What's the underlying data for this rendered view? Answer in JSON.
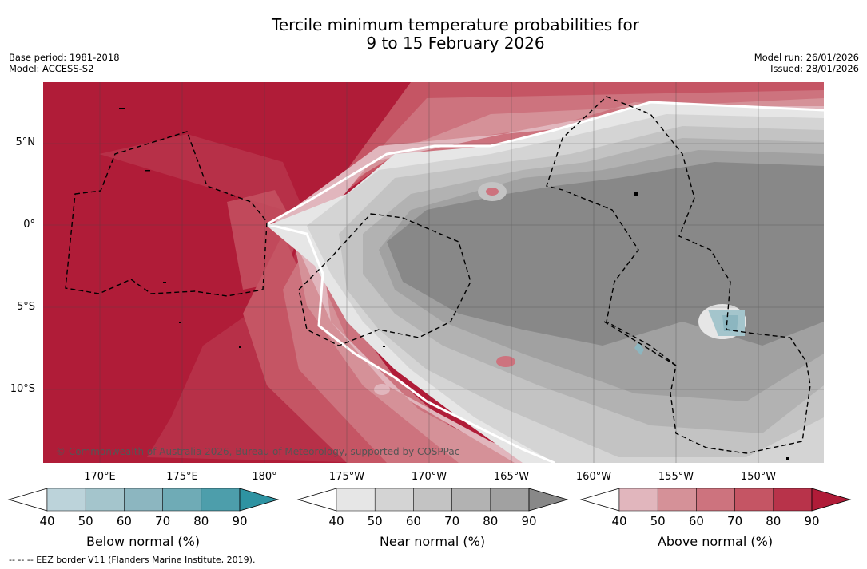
{
  "title": {
    "line1": "Tercile minimum temperature probabilities for",
    "line2": "9 to 15 February 2026"
  },
  "meta_left": {
    "base_period": "Base period: 1981-2018",
    "model": "Model: ACCESS-S2"
  },
  "meta_right": {
    "model_run": "Model run: 26/01/2026",
    "issued": "Issued: 28/01/2026"
  },
  "map": {
    "copyright": "© Commonwealth of Australia 2026, Bureau of Meteorology, supported by COSPPac",
    "lat_labels": [
      "5°N",
      "0°",
      "5°S",
      "10°S"
    ],
    "lon_labels": [
      "170°E",
      "175°E",
      "180°",
      "175°W",
      "170°W",
      "165°W",
      "160°W",
      "155°W",
      "150°W"
    ]
  },
  "colorbars": [
    {
      "label": "Below normal (%)",
      "ticks": [
        "40",
        "50",
        "60",
        "70",
        "80",
        "90"
      ],
      "colors": [
        "#bcd3da",
        "#a4c5cc",
        "#8cb6c0",
        "#6fabb6",
        "#4d9eab",
        "#2e93a2"
      ]
    },
    {
      "label": "Near normal (%)",
      "ticks": [
        "40",
        "50",
        "60",
        "70",
        "80",
        "90"
      ],
      "colors": [
        "#e6e6e6",
        "#d4d4d4",
        "#c3c3c3",
        "#b2b2b2",
        "#a1a1a1",
        "#888888"
      ]
    },
    {
      "label": "Above normal (%)",
      "ticks": [
        "40",
        "50",
        "60",
        "70",
        "80",
        "90"
      ],
      "colors": [
        "#e1b6bd",
        "#d59198",
        "#cd737e",
        "#c55564",
        "#b8334a",
        "#b01c38"
      ]
    }
  ],
  "footnote": "--  --  -- EEZ border V11 (Flanders Marine Institute, 2019)."
}
